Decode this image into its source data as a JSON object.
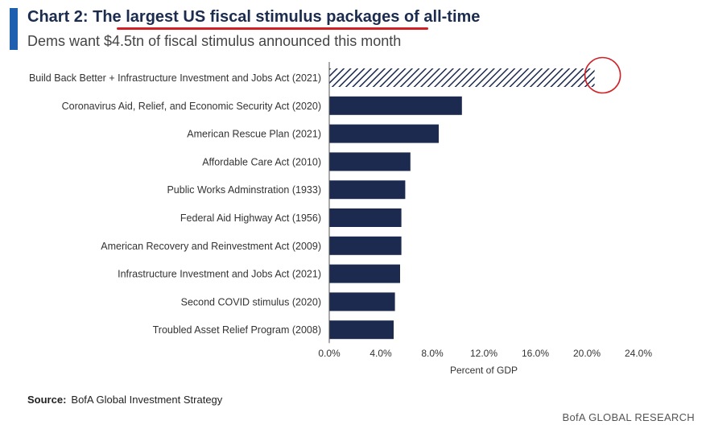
{
  "header": {
    "title_prefix": "Chart 2: The ",
    "title_highlight": "largest US fiscal stimulus packages of all-time",
    "subtitle": "Dems want $4.5tn of fiscal stimulus announced this month"
  },
  "source": {
    "label": "Source:",
    "text": "BofA Global Investment Strategy"
  },
  "footer": {
    "brand": "BofA GLOBAL RESEARCH"
  },
  "colors": {
    "bar": "#1b2a4e",
    "accent": "#1f5fb0",
    "annotation": "#d11f26"
  },
  "chart_data": {
    "type": "bar",
    "orientation": "horizontal",
    "categories": [
      "Build Back Better + Infrastructure Investment and Jobs Act (2021)",
      "Coronavirus Aid, Relief, and Economic Security Act (2020)",
      "American Rescue Plan (2021)",
      "Affordable Care Act (2010)",
      "Public Works Adminstration (1933)",
      "Federal Aid Highway Act (1956)",
      "American Recovery and Reinvestment Act (2009)",
      "Infrastructure Investment and Jobs Act (2021)",
      "Second COVID stimulus (2020)",
      "Troubled Asset Relief Program (2008)"
    ],
    "values": [
      20.6,
      10.3,
      8.5,
      6.3,
      5.9,
      5.6,
      5.6,
      5.5,
      5.1,
      5.0
    ],
    "xlabel": "Percent of GDP",
    "ylabel": "",
    "xlim": [
      0,
      24
    ],
    "xticks": [
      "0.0%",
      "4.0%",
      "8.0%",
      "12.0%",
      "16.0%",
      "20.0%",
      "24.0%"
    ],
    "hatched": [
      "Build Back Better + Infrastructure Investment and Jobs Act (2021)"
    ],
    "annotation": "circle on Build Back Better bar end",
    "grid": false
  }
}
